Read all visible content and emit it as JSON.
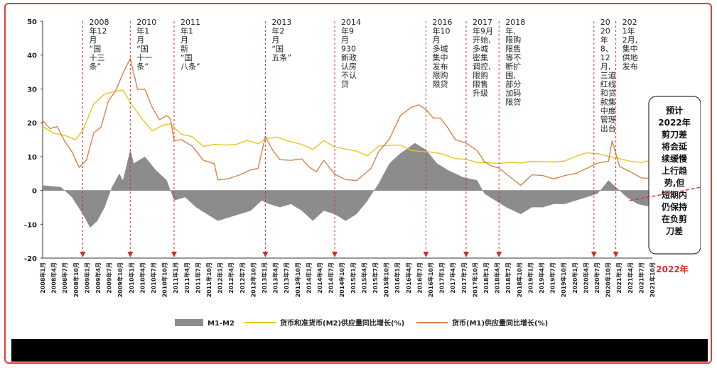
{
  "chart_data": {
    "type": "line",
    "ylim": [
      -20,
      50
    ],
    "yticks": [
      50,
      40,
      30,
      20,
      10,
      0,
      -10,
      -20
    ],
    "x_start": "2008年1月",
    "x_end": "2021年12月",
    "x_tick_labels": [
      "2008年1月",
      "2008年4月",
      "2008年7月",
      "2008年10月",
      "2009年1月",
      "2009年4月",
      "2009年7月",
      "2009年10月",
      "2010年1月",
      "2010年4月",
      "2010年7月",
      "2010年10月",
      "2011年1月",
      "2011年4月",
      "2011年7月",
      "2011年10月",
      "2012年1月",
      "2012年4月",
      "2012年7月",
      "2012年10月",
      "2013年1月",
      "2013年4月",
      "2013年7月",
      "2013年10月",
      "2014年1月",
      "2014年4月",
      "2014年7月",
      "2014年10月",
      "2015年1月",
      "2015年4月",
      "2015年7月",
      "2015年10月",
      "2016年1月",
      "2016年4月",
      "2016年7月",
      "2016年10月",
      "2017年1月",
      "2017年4月",
      "2017年7月",
      "2017年10月",
      "2018年1月",
      "2018年4月",
      "2018年7月",
      "2018年10月",
      "2019年1月",
      "2019年4月",
      "2019年7月",
      "2019年10月",
      "2020年1月",
      "2020年4月",
      "2020年7月",
      "2020年10月",
      "2021年1月",
      "2021年4月",
      "2021年7月",
      "2021年10月"
    ],
    "series": [
      {
        "name": "M1-M2",
        "type": "area",
        "color": "#8c8c8c",
        "points": [
          [
            "2008-01",
            1.5
          ],
          [
            "2008-06",
            1.0
          ],
          [
            "2008-09",
            -2
          ],
          [
            "2008-12",
            -7
          ],
          [
            "2009-02",
            -11
          ],
          [
            "2009-04",
            -9
          ],
          [
            "2009-06",
            -5
          ],
          [
            "2009-08",
            1
          ],
          [
            "2009-10",
            5
          ],
          [
            "2009-11",
            3
          ],
          [
            "2010-01",
            12
          ],
          [
            "2010-02",
            8
          ],
          [
            "2010-05",
            10
          ],
          [
            "2010-08",
            6
          ],
          [
            "2010-11",
            3
          ],
          [
            "2011-01",
            -3
          ],
          [
            "2011-04",
            -2
          ],
          [
            "2011-07",
            -5
          ],
          [
            "2011-10",
            -7
          ],
          [
            "2012-01",
            -9
          ],
          [
            "2012-04",
            -8
          ],
          [
            "2012-07",
            -7
          ],
          [
            "2012-10",
            -6
          ],
          [
            "2013-01",
            -3
          ],
          [
            "2013-03",
            -4
          ],
          [
            "2013-06",
            -5
          ],
          [
            "2013-09",
            -4
          ],
          [
            "2013-12",
            -6
          ],
          [
            "2014-03",
            -9
          ],
          [
            "2014-06",
            -6
          ],
          [
            "2014-09",
            -7
          ],
          [
            "2014-12",
            -9
          ],
          [
            "2015-03",
            -7
          ],
          [
            "2015-06",
            -3
          ],
          [
            "2015-09",
            2
          ],
          [
            "2015-12",
            8
          ],
          [
            "2016-03",
            11
          ],
          [
            "2016-07",
            14
          ],
          [
            "2016-10",
            12
          ],
          [
            "2017-01",
            8
          ],
          [
            "2017-04",
            6
          ],
          [
            "2017-08",
            4
          ],
          [
            "2017-12",
            3
          ],
          [
            "2018-02",
            -1
          ],
          [
            "2018-05",
            -3
          ],
          [
            "2018-08",
            -5
          ],
          [
            "2018-12",
            -7
          ],
          [
            "2019-03",
            -5
          ],
          [
            "2019-06",
            -5
          ],
          [
            "2019-09",
            -4
          ],
          [
            "2019-12",
            -4
          ],
          [
            "2020-03",
            -3
          ],
          [
            "2020-06",
            -2
          ],
          [
            "2020-09",
            -1
          ],
          [
            "2020-12",
            3
          ],
          [
            "2021-02",
            1
          ],
          [
            "2021-05",
            -2
          ],
          [
            "2021-08",
            -4
          ],
          [
            "2021-12",
            -5
          ]
        ]
      },
      {
        "name": "货币和准货币(M2)供应量同比增长(%)",
        "type": "line",
        "color": "#e8c51d",
        "points": [
          [
            "2008-01",
            18.9
          ],
          [
            "2008-04",
            16.9
          ],
          [
            "2008-07",
            16.3
          ],
          [
            "2008-10",
            15.0
          ],
          [
            "2008-12",
            17.8
          ],
          [
            "2009-03",
            25.5
          ],
          [
            "2009-06",
            28.5
          ],
          [
            "2009-09",
            29.3
          ],
          [
            "2009-11",
            29.7
          ],
          [
            "2010-01",
            26.0
          ],
          [
            "2010-04",
            21.5
          ],
          [
            "2010-07",
            17.6
          ],
          [
            "2010-10",
            19.3
          ],
          [
            "2010-12",
            19.7
          ],
          [
            "2011-03",
            16.6
          ],
          [
            "2011-06",
            15.9
          ],
          [
            "2011-09",
            13.0
          ],
          [
            "2011-12",
            13.6
          ],
          [
            "2012-03",
            13.4
          ],
          [
            "2012-06",
            13.6
          ],
          [
            "2012-09",
            14.8
          ],
          [
            "2012-12",
            13.8
          ],
          [
            "2013-02",
            15.2
          ],
          [
            "2013-05",
            15.8
          ],
          [
            "2013-08",
            14.7
          ],
          [
            "2013-12",
            13.6
          ],
          [
            "2014-03",
            12.1
          ],
          [
            "2014-06",
            14.7
          ],
          [
            "2014-09",
            12.9
          ],
          [
            "2014-12",
            12.2
          ],
          [
            "2015-03",
            11.6
          ],
          [
            "2015-06",
            10.2
          ],
          [
            "2015-09",
            13.1
          ],
          [
            "2015-12",
            13.3
          ],
          [
            "2016-03",
            13.4
          ],
          [
            "2016-06",
            11.8
          ],
          [
            "2016-09",
            11.5
          ],
          [
            "2016-12",
            11.3
          ],
          [
            "2017-03",
            10.6
          ],
          [
            "2017-06",
            9.4
          ],
          [
            "2017-09",
            9.2
          ],
          [
            "2017-12",
            8.2
          ],
          [
            "2018-03",
            8.2
          ],
          [
            "2018-06",
            8.0
          ],
          [
            "2018-09",
            8.3
          ],
          [
            "2018-12",
            8.1
          ],
          [
            "2019-03",
            8.6
          ],
          [
            "2019-06",
            8.5
          ],
          [
            "2019-09",
            8.4
          ],
          [
            "2019-12",
            8.7
          ],
          [
            "2020-03",
            10.1
          ],
          [
            "2020-06",
            11.1
          ],
          [
            "2020-09",
            10.9
          ],
          [
            "2020-12",
            10.1
          ],
          [
            "2021-03",
            9.4
          ],
          [
            "2021-06",
            8.6
          ],
          [
            "2021-09",
            8.3
          ],
          [
            "2021-12",
            9.0
          ]
        ]
      },
      {
        "name": "货币(M1)供应量同比增长(%)",
        "type": "line",
        "color": "#d9824a",
        "points": [
          [
            "2008-01",
            20.7
          ],
          [
            "2008-03",
            18.3
          ],
          [
            "2008-05",
            18.9
          ],
          [
            "2008-07",
            14.6
          ],
          [
            "2008-09",
            11.5
          ],
          [
            "2008-11",
            6.8
          ],
          [
            "2009-01",
            9.0
          ],
          [
            "2009-03",
            17.0
          ],
          [
            "2009-05",
            18.7
          ],
          [
            "2009-07",
            26.4
          ],
          [
            "2009-09",
            29.5
          ],
          [
            "2009-11",
            34.6
          ],
          [
            "2010-01",
            39.0
          ],
          [
            "2010-03",
            29.9
          ],
          [
            "2010-05",
            29.9
          ],
          [
            "2010-07",
            24.6
          ],
          [
            "2010-09",
            20.9
          ],
          [
            "2010-11",
            22.1
          ],
          [
            "2010-12",
            21.2
          ],
          [
            "2011-01",
            14.8
          ],
          [
            "2011-03",
            15.0
          ],
          [
            "2011-06",
            13.1
          ],
          [
            "2011-09",
            8.9
          ],
          [
            "2011-12",
            7.9
          ],
          [
            "2012-01",
            3.1
          ],
          [
            "2012-04",
            3.5
          ],
          [
            "2012-07",
            4.6
          ],
          [
            "2012-10",
            6.1
          ],
          [
            "2012-12",
            6.5
          ],
          [
            "2013-02",
            15.9
          ],
          [
            "2013-04",
            11.9
          ],
          [
            "2013-06",
            9.1
          ],
          [
            "2013-09",
            8.9
          ],
          [
            "2013-12",
            9.3
          ],
          [
            "2014-02",
            6.9
          ],
          [
            "2014-04",
            5.5
          ],
          [
            "2014-06",
            8.9
          ],
          [
            "2014-09",
            4.8
          ],
          [
            "2014-12",
            3.2
          ],
          [
            "2015-03",
            2.9
          ],
          [
            "2015-05",
            4.7
          ],
          [
            "2015-07",
            6.6
          ],
          [
            "2015-09",
            11.4
          ],
          [
            "2015-12",
            15.2
          ],
          [
            "2016-03",
            22.1
          ],
          [
            "2016-06",
            24.6
          ],
          [
            "2016-08",
            25.3
          ],
          [
            "2016-10",
            23.9
          ],
          [
            "2016-12",
            21.4
          ],
          [
            "2017-02",
            21.4
          ],
          [
            "2017-04",
            18.5
          ],
          [
            "2017-06",
            15.0
          ],
          [
            "2017-09",
            14.0
          ],
          [
            "2017-12",
            11.8
          ],
          [
            "2018-02",
            8.5
          ],
          [
            "2018-04",
            7.2
          ],
          [
            "2018-06",
            6.6
          ],
          [
            "2018-09",
            4.0
          ],
          [
            "2018-12",
            1.5
          ],
          [
            "2019-03",
            4.6
          ],
          [
            "2019-06",
            4.4
          ],
          [
            "2019-09",
            3.4
          ],
          [
            "2019-12",
            4.4
          ],
          [
            "2020-03",
            5.0
          ],
          [
            "2020-06",
            6.5
          ],
          [
            "2020-09",
            8.1
          ],
          [
            "2020-12",
            8.6
          ],
          [
            "2021-01",
            14.7
          ],
          [
            "2021-03",
            7.1
          ],
          [
            "2021-06",
            5.5
          ],
          [
            "2021-09",
            3.7
          ],
          [
            "2021-12",
            3.5
          ]
        ]
      }
    ],
    "events": [
      {
        "date": "2008-12",
        "lines": [
          "2008",
          "年12",
          "月",
          "“国",
          "十三",
          "条”"
        ]
      },
      {
        "date": "2010-01",
        "lines": [
          "2010",
          "年1",
          "月",
          "“国",
          "十一",
          "条”"
        ]
      },
      {
        "date": "2011-01",
        "lines": [
          "2011",
          "年1",
          "月",
          "新",
          "“国",
          "八条”"
        ]
      },
      {
        "date": "2013-02",
        "lines": [
          "2013",
          "年2",
          "月",
          "“国",
          "五条”"
        ]
      },
      {
        "date": "2014-09",
        "lines": [
          "2014",
          "年9",
          "月",
          "930",
          "新政",
          "认房",
          "不认",
          "贷"
        ]
      },
      {
        "date": "2016-10",
        "lines": [
          "2016",
          "年10",
          "月",
          "多城",
          "集中",
          "发布",
          "限购",
          "限贷"
        ]
      },
      {
        "date": "2017-09",
        "lines": [
          "2017",
          "年9月",
          "开始,",
          "多城",
          "密集",
          "调控,",
          "限购",
          "限售",
          "升级"
        ]
      },
      {
        "date": "2018-06",
        "lines": [
          "2018",
          "年,",
          "限购",
          "限售",
          "等不",
          "断扩",
          "围,",
          "部分",
          "加码",
          "限贷"
        ]
      },
      {
        "date": "2020-08",
        "lines": [
          "20",
          "20",
          "年",
          "8、",
          "12",
          "月,",
          "三道",
          "红线",
          "和贷",
          "款集",
          "中度",
          "管理",
          "出台"
        ]
      },
      {
        "date": "2021-02",
        "lines": [
          "202",
          "1年",
          "2月,",
          "集中",
          "供地",
          "发布"
        ]
      }
    ],
    "legend": [
      "M1-M2",
      "货币和准货币(M2)供应量同比增长(%)",
      "货币(M1)供应量同比增长(%)"
    ],
    "callout": {
      "lines": [
        "预计",
        "2022年",
        "剪刀差",
        "将会延",
        "续缓慢",
        "上行趋",
        "势,但",
        "短期内",
        "仍保持",
        "在负剪",
        "刀差"
      ]
    },
    "footnote": "2022年",
    "colors": {
      "frame": "#e53935",
      "marker": "#d32f2f",
      "callout_border": "#333333"
    }
  }
}
